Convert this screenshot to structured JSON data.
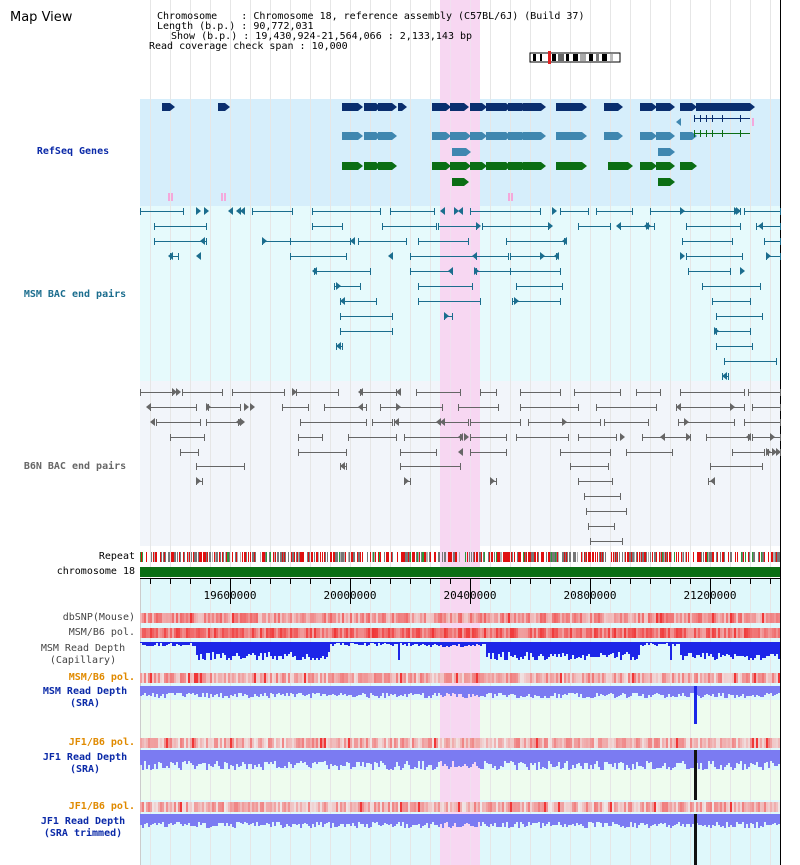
{
  "map_title": "Map View",
  "info": {
    "chromosome_label": "Chromosome",
    "chromosome_value": "Chromosome 18, reference assembly (C57BL/6J) (Build 37)",
    "length_label": "Length (b.p.)",
    "length_value": "90,772,031",
    "show_label": "Show (b.p.)",
    "show_value": "19,430,924-21,564,066 : 2,133,143 bp",
    "coverage_label": "Read coverage check span",
    "coverage_value": "10,000"
  },
  "tracks": {
    "refseq": "RefSeq Genes",
    "msm_bac": "MSM BAC end pairs",
    "b6n_bac": "B6N BAC end pairs",
    "repeat": "Repeat",
    "chromosome": "chromosome 18"
  },
  "axis_ticks": [
    "19600000",
    "20000000",
    "20400000",
    "20800000",
    "21200000"
  ],
  "bottom_tracks": {
    "dbsnp": "dbSNP(Mouse)",
    "msm_b6_pol": "MSM/B6 pol.",
    "msm_depth_cap": "MSM Read Depth",
    "msm_depth_cap_sub": "(Capillary)",
    "msm_b6_pol2": "MSM/B6 pol.",
    "msm_depth_sra": "MSM Read Depth",
    "msm_depth_sra_sub": "(SRA)",
    "jf1_b6_pol": "JF1/B6 pol.",
    "jf1_depth_sra": "JF1 Read Depth",
    "jf1_depth_sra_sub": "(SRA)",
    "jf1_b6_pol2": "JF1/B6 pol.",
    "jf1_depth_trim": "JF1 Read Depth",
    "jf1_depth_trim_sub": "(SRA trimmed)"
  },
  "colors": {
    "refseq_dark": "#0a2e6e",
    "refseq_mid": "#3f87b0",
    "refseq_green": "#0b6e14",
    "msm_pair": "#1b6d8e",
    "b6n_pair": "#666666",
    "highlight": "#f7d7f2",
    "depth_blue": "#1d26e8",
    "depth_light": "#7b7bf2",
    "pol_red": "#f04444"
  }
}
